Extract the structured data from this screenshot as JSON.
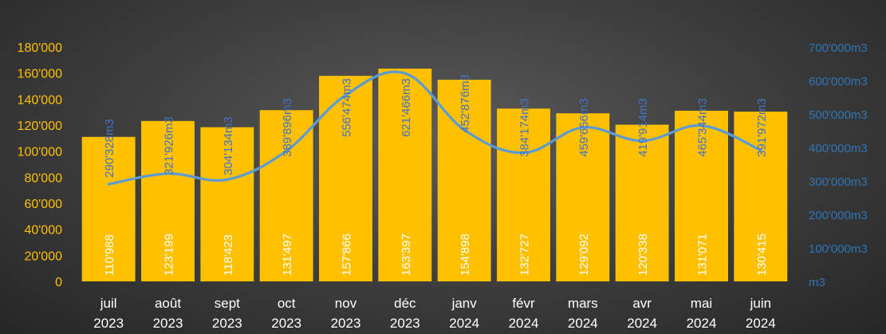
{
  "chart_data": {
    "type": "bar",
    "categories": [
      {
        "month": "juil",
        "year": "2023"
      },
      {
        "month": "août",
        "year": "2023"
      },
      {
        "month": "sept",
        "year": "2023"
      },
      {
        "month": "oct",
        "year": "2023"
      },
      {
        "month": "nov",
        "year": "2023"
      },
      {
        "month": "déc",
        "year": "2023"
      },
      {
        "month": "janv",
        "year": "2024"
      },
      {
        "month": "févr",
        "year": "2024"
      },
      {
        "month": "mars",
        "year": "2024"
      },
      {
        "month": "avr",
        "year": "2024"
      },
      {
        "month": "mai",
        "year": "2024"
      },
      {
        "month": "juin",
        "year": "2024"
      }
    ],
    "series": [
      {
        "type": "bar",
        "axis": "left",
        "color": "#ffc000",
        "values": [
          110988,
          123199,
          118423,
          131497,
          157866,
          163397,
          154898,
          132727,
          129092,
          120338,
          131071,
          130415
        ],
        "labels": [
          "110'988",
          "123'199",
          "118'423",
          "131'497",
          "157'866",
          "163'397",
          "154'898",
          "132'727",
          "129'092",
          "120'338",
          "131'071",
          "130'415"
        ]
      },
      {
        "type": "line",
        "axis": "right",
        "color": "#5b9bd5",
        "values": [
          290328,
          321926,
          304134,
          389896,
          556474,
          621466,
          452876,
          384174,
          459656,
          419914,
          465344,
          391972
        ],
        "labels": [
          "290'328m3",
          "321'926m3",
          "304'134m3",
          "389'896m3",
          "556'474m3",
          "621'466m3",
          "452'876m3",
          "384'174m3",
          "459'656m3",
          "419'914m3",
          "465'344m3",
          "391'972m3"
        ]
      }
    ],
    "y_left": {
      "min": 0,
      "max": 180000,
      "ticks": [
        0,
        20000,
        40000,
        60000,
        80000,
        100000,
        120000,
        140000,
        160000,
        180000
      ],
      "tick_labels": [
        "0",
        "20'000",
        "40'000",
        "60'000",
        "80'000",
        "100'000",
        "120'000",
        "140'000",
        "160'000",
        "180'000"
      ],
      "color": "#ffc000"
    },
    "y_right": {
      "min": 0,
      "max": 700000,
      "ticks": [
        0,
        100000,
        200000,
        300000,
        400000,
        500000,
        600000,
        700000
      ],
      "tick_labels": [
        "m3",
        "100'000m3",
        "200'000m3",
        "300'000m3",
        "400'000m3",
        "500'000m3",
        "600'000m3",
        "700'000m3"
      ],
      "color": "#2e75b6"
    },
    "title": "",
    "legend": "none",
    "grid": false
  }
}
